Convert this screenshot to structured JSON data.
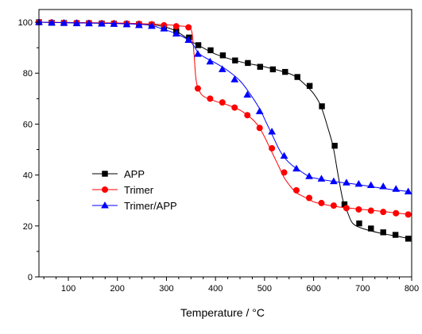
{
  "chart_data": {
    "type": "line",
    "title": "",
    "xlabel": "Temperature / °C",
    "ylabel": "",
    "xlim": [
      40,
      800
    ],
    "ylim": [
      0,
      105
    ],
    "xticks": [
      100,
      200,
      300,
      400,
      500,
      600,
      700,
      800
    ],
    "yticks": [
      0,
      20,
      40,
      60,
      80,
      100
    ],
    "grid": false,
    "legend_position": "lower-left",
    "series": [
      {
        "name": "APP",
        "color": "#000000",
        "marker": "square",
        "curve": [
          [
            40,
            100
          ],
          [
            100,
            99.8
          ],
          [
            200,
            99.5
          ],
          [
            270,
            99
          ],
          [
            300,
            98
          ],
          [
            320,
            96.5
          ],
          [
            340,
            94
          ],
          [
            350,
            92.5
          ],
          [
            365,
            91
          ],
          [
            400,
            87.5
          ],
          [
            450,
            84.5
          ],
          [
            500,
            82.5
          ],
          [
            540,
            80.5
          ],
          [
            560,
            79
          ],
          [
            580,
            76
          ],
          [
            600,
            72
          ],
          [
            615,
            67
          ],
          [
            630,
            58
          ],
          [
            640,
            51
          ],
          [
            650,
            40
          ],
          [
            660,
            30
          ],
          [
            670,
            25
          ],
          [
            680,
            21
          ],
          [
            700,
            19
          ],
          [
            740,
            17
          ],
          [
            770,
            16
          ],
          [
            795,
            15
          ]
        ],
        "markers": [
          [
            40,
            100
          ],
          [
            66,
            99.8
          ],
          [
            91,
            99.7
          ],
          [
            117,
            99.6
          ],
          [
            142,
            99.6
          ],
          [
            168,
            99.5
          ],
          [
            193,
            99.4
          ],
          [
            219,
            99.3
          ],
          [
            244,
            99.2
          ],
          [
            270,
            99
          ],
          [
            295,
            98.2
          ],
          [
            320,
            96.5
          ],
          [
            346,
            94
          ],
          [
            365,
            91
          ],
          [
            390,
            89
          ],
          [
            415,
            87
          ],
          [
            440,
            85
          ],
          [
            466,
            84
          ],
          [
            491,
            82.5
          ],
          [
            517,
            81.5
          ],
          [
            542,
            80.5
          ],
          [
            567,
            78.5
          ],
          [
            592,
            75
          ],
          [
            617,
            67
          ],
          [
            643,
            51.5
          ],
          [
            663,
            28.5
          ],
          [
            693,
            21
          ],
          [
            717,
            19
          ],
          [
            742,
            17.5
          ],
          [
            767,
            16.5
          ],
          [
            793,
            15
          ]
        ]
      },
      {
        "name": "Trimer",
        "color": "#ff0000",
        "marker": "circle",
        "curve": [
          [
            40,
            100
          ],
          [
            200,
            99.7
          ],
          [
            300,
            99
          ],
          [
            330,
            98.5
          ],
          [
            345,
            98
          ],
          [
            352,
            96
          ],
          [
            356,
            88
          ],
          [
            360,
            78
          ],
          [
            365,
            74
          ],
          [
            375,
            71
          ],
          [
            400,
            69
          ],
          [
            425,
            67.5
          ],
          [
            450,
            65.5
          ],
          [
            465,
            63.5
          ],
          [
            480,
            61
          ],
          [
            490,
            58.5
          ],
          [
            500,
            55
          ],
          [
            510,
            51
          ],
          [
            520,
            47
          ],
          [
            530,
            43
          ],
          [
            540,
            39
          ],
          [
            555,
            35
          ],
          [
            565,
            33
          ],
          [
            580,
            31.5
          ],
          [
            600,
            29.5
          ],
          [
            620,
            28.5
          ],
          [
            650,
            27.5
          ],
          [
            700,
            26.5
          ],
          [
            750,
            25.5
          ],
          [
            795,
            24.5
          ]
        ],
        "markers": [
          [
            40,
            100
          ],
          [
            66,
            99.9
          ],
          [
            91,
            99.8
          ],
          [
            117,
            99.8
          ],
          [
            142,
            99.7
          ],
          [
            168,
            99.6
          ],
          [
            193,
            99.6
          ],
          [
            219,
            99.5
          ],
          [
            244,
            99.4
          ],
          [
            270,
            99.2
          ],
          [
            295,
            98.8
          ],
          [
            320,
            98.4
          ],
          [
            345,
            98
          ],
          [
            364,
            74
          ],
          [
            389,
            70
          ],
          [
            414,
            68.5
          ],
          [
            439,
            66.5
          ],
          [
            465,
            63.5
          ],
          [
            490,
            58.5
          ],
          [
            515,
            50.5
          ],
          [
            540,
            41
          ],
          [
            565,
            34
          ],
          [
            591,
            31
          ],
          [
            616,
            29
          ],
          [
            641,
            28
          ],
          [
            667,
            27
          ],
          [
            692,
            26.5
          ],
          [
            717,
            26
          ],
          [
            742,
            25.5
          ],
          [
            768,
            25
          ],
          [
            793,
            24.5
          ]
        ]
      },
      {
        "name": "Trimer/APP",
        "color": "#0000ff",
        "marker": "triangle",
        "curve": [
          [
            40,
            100
          ],
          [
            200,
            99.5
          ],
          [
            260,
            99
          ],
          [
            290,
            97.5
          ],
          [
            320,
            95.5
          ],
          [
            345,
            93
          ],
          [
            355,
            91
          ],
          [
            365,
            88
          ],
          [
            380,
            86
          ],
          [
            400,
            84
          ],
          [
            425,
            81
          ],
          [
            450,
            77
          ],
          [
            470,
            72
          ],
          [
            490,
            66
          ],
          [
            505,
            60
          ],
          [
            520,
            54
          ],
          [
            530,
            50
          ],
          [
            540,
            47
          ],
          [
            555,
            44
          ],
          [
            570,
            42
          ],
          [
            590,
            39.5
          ],
          [
            610,
            38.5
          ],
          [
            640,
            37.5
          ],
          [
            700,
            36
          ],
          [
            750,
            34.5
          ],
          [
            795,
            33.5
          ]
        ],
        "markers": [
          [
            40,
            100
          ],
          [
            66,
            99.8
          ],
          [
            91,
            99.7
          ],
          [
            117,
            99.6
          ],
          [
            142,
            99.5
          ],
          [
            168,
            99.4
          ],
          [
            193,
            99.3
          ],
          [
            219,
            99.1
          ],
          [
            244,
            98.8
          ],
          [
            270,
            98.5
          ],
          [
            295,
            97.5
          ],
          [
            320,
            95.5
          ],
          [
            345,
            93
          ],
          [
            364,
            87.5
          ],
          [
            389,
            84.5
          ],
          [
            414,
            81.5
          ],
          [
            439,
            77.5
          ],
          [
            465,
            71.5
          ],
          [
            490,
            65
          ],
          [
            515,
            57
          ],
          [
            540,
            47.5
          ],
          [
            565,
            42.5
          ],
          [
            591,
            39.5
          ],
          [
            616,
            38.5
          ],
          [
            641,
            37.5
          ],
          [
            667,
            37
          ],
          [
            692,
            36.5
          ],
          [
            717,
            36
          ],
          [
            742,
            35.5
          ],
          [
            768,
            34.5
          ],
          [
            793,
            33.5
          ]
        ]
      }
    ]
  }
}
